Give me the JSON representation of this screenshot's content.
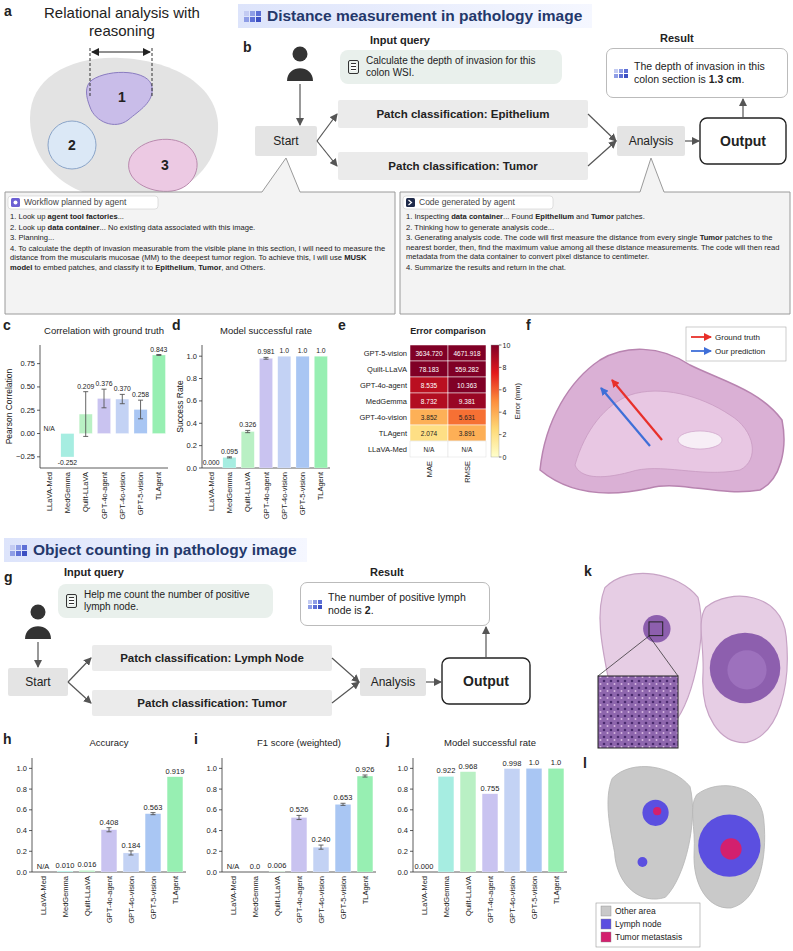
{
  "panel_a": {
    "letter": "a",
    "title": "Relational analysis with reasoning",
    "regions": [
      "1",
      "2",
      "3"
    ]
  },
  "section_1": {
    "title": "Distance measurement in pathology image"
  },
  "panel_b": {
    "letter": "b",
    "input_label": "Input query",
    "query": "Calculate the depth of invasion for this colon WSI.",
    "result_label": "Result",
    "result": [
      "The depth of invasion in this colon section is ",
      "1.3 cm",
      "."
    ],
    "flow": {
      "start": "Start",
      "branches": [
        "Patch classification: Epithelium",
        "Patch classification: Tumor"
      ],
      "analysis": "Analysis",
      "output": "Output"
    },
    "workflow": {
      "title": "Workflow planned by agent",
      "items": [
        [
          "1. Look up ",
          "agent tool factories",
          "..."
        ],
        [
          "2. Look up ",
          "data container",
          "... No existing data associated with this image."
        ],
        [
          "3. Planning..."
        ],
        [
          "4. To calculate the depth of invasion measurable from the visible plane in this section, I will need to measure the distance from the muscularis mucosae (MM) to the deepest tumor region. To achieve this, I will use ",
          "MUSK model",
          " to embed patches, and classify it to ",
          "Epithelium",
          ", ",
          "Tumor",
          ", and Others."
        ]
      ]
    },
    "code": {
      "title": "Code generated by agent",
      "items": [
        [
          "1. Inspecting ",
          "data container",
          "... Found ",
          "Epithelium",
          " and ",
          "Tumor",
          " patches."
        ],
        [
          "2. Thinking how to generate analysis code..."
        ],
        [
          "3. Generating analysis code. The code will first measure the distance from every single ",
          "Tumor",
          " patches to the nearest border, then, find the maximum value among all these distance measurements. The code will then read metadata from the data container to convert pixel distance to centimeter."
        ],
        [
          "4. Summarize the results and return in the chat."
        ]
      ]
    }
  },
  "chart_data": [
    {
      "type": "bar",
      "panel_label": "c",
      "title": "Correlation with ground truth",
      "y_label": "Pearson Correlation",
      "categories": [
        "LLaVA-Med",
        "MedGemma",
        "Quilt-LLaVA",
        "GPT-4o-agent",
        "GPT-4o-vision",
        "GPT-5-vision",
        "TLAgent"
      ],
      "values": [
        null,
        -0.252,
        0.209,
        0.376,
        0.37,
        0.258,
        0.843
      ],
      "errors": [
        null,
        null,
        0.24,
        0.1,
        0.05,
        0.1,
        0.005
      ],
      "value_labels": [
        "N/A",
        "-0.252",
        "0.209",
        "0.376",
        "0.370",
        "0.258",
        "0.843"
      ],
      "colors": [
        "#d6eef7",
        "#a6ede1",
        "#b9f0c4",
        "#c9c3f0",
        "#c3d2f4",
        "#a9c6f3",
        "#97efb2"
      ],
      "ylim": [
        -0.37,
        0.95
      ],
      "yticks": [
        {
          "value": -0.25,
          "label": "−0.25"
        },
        {
          "value": 0,
          "label": "0.00"
        },
        0.25,
        {
          "value": 0.5,
          "label": "0.50"
        },
        0.75
      ],
      "grid": false,
      "data_labels": true
    },
    {
      "type": "bar",
      "panel_label": "d",
      "title": "Model successful rate",
      "y_label": "Success Rate",
      "categories": [
        "LLaVA-Med",
        "MedGemma",
        "Quilt-LLaVA",
        "GPT-4o-agent",
        "GPT-4o-vision",
        "GPT-5-vision",
        "TLAgent"
      ],
      "values": [
        0,
        0.095,
        0.326,
        0.981,
        1,
        1,
        1
      ],
      "errors": [
        null,
        0.005,
        0.01,
        0.008,
        null,
        null,
        null
      ],
      "value_labels": [
        "0.000",
        "0.095",
        "0.326",
        "0.981",
        "1.0",
        "1.0",
        "1.0"
      ],
      "colors": [
        "#d6eef7",
        "#a6ede1",
        "#b9f0c4",
        "#c9c3f0",
        "#c3d2f4",
        "#a9c6f3",
        "#97efb2"
      ],
      "ylim": [
        0,
        1.1
      ],
      "yticks": [
        {
          "value": 0,
          "label": "0.0"
        },
        0.2,
        0.4,
        0.6,
        0.8,
        {
          "value": 1,
          "label": "1.0"
        }
      ],
      "grid": false,
      "data_labels": true
    },
    {
      "type": "heatmap",
      "panel_label": "e",
      "title": "Error comparison",
      "rows": [
        "GPT-5-vision",
        "Quilt-LLaVA",
        "GPT-4o-agent",
        "MedGemma",
        "GPT-4o-vision",
        "TLAgent",
        "LLaVA-Med"
      ],
      "columns": [
        "MAE",
        "RMSE"
      ],
      "cells": [
        [
          3634.72,
          4671.918
        ],
        [
          78.183,
          559.282
        ],
        [
          8.535,
          10.363
        ],
        [
          8.732,
          9.381
        ],
        [
          3.852,
          5.631
        ],
        [
          2.074,
          3.891
        ],
        [
          null,
          null
        ]
      ],
      "cell_labels": [
        [
          "3634.720",
          "4671.918"
        ],
        [
          "78.183",
          "559.282"
        ],
        [
          "8.535",
          "10.363"
        ],
        [
          "8.732",
          "9.381"
        ],
        [
          "3.852",
          "5.631"
        ],
        [
          "2.074",
          "3.891"
        ],
        [
          "N/A",
          "N/A"
        ]
      ],
      "colorbar": {
        "label": "Error (mm)",
        "range": [
          0,
          10
        ],
        "ticks": [
          0,
          2,
          4,
          6,
          8,
          10
        ]
      }
    },
    {
      "type": "bar",
      "panel_label": "h",
      "title": "Accuracy",
      "categories": [
        "LLaVA-Med",
        "MedGemma",
        "Quilt-LLaVA",
        "GPT-4o-agent",
        "GPT-4o-vision",
        "GPT-5-vision",
        "TLAgent"
      ],
      "values": [
        null,
        0.01,
        0.016,
        0.408,
        0.184,
        0.563,
        0.919
      ],
      "errors": [
        null,
        null,
        null,
        0.02,
        0.02,
        0.01,
        null
      ],
      "value_labels": [
        "N/A",
        "0.010",
        "0.016",
        "0.408",
        "0.184",
        "0.563",
        "0.919"
      ],
      "colors": [
        "#d6eef7",
        "#a6ede1",
        "#b9f0c4",
        "#c9c3f0",
        "#c3d2f4",
        "#a9c6f3",
        "#97efb2"
      ],
      "ylim": [
        0,
        1.1
      ],
      "yticks": [
        {
          "value": 0,
          "label": "0.0"
        },
        0.2,
        0.4,
        0.6,
        0.8,
        {
          "value": 1,
          "label": "1.0"
        }
      ],
      "grid": false,
      "data_labels": true
    },
    {
      "type": "bar",
      "panel_label": "i",
      "title": "F1 score (weighted)",
      "categories": [
        "LLaVA-Med",
        "MedGemma",
        "Quilt-LLaVA",
        "GPT-4o-agent",
        "GPT-4o-vision",
        "GPT-5-vision",
        "TLAgent"
      ],
      "values": [
        null,
        0,
        0.006,
        0.526,
        0.24,
        0.653,
        0.926
      ],
      "errors": [
        null,
        null,
        null,
        0.02,
        0.02,
        0.01,
        0.01
      ],
      "value_labels": [
        "N/A",
        "0.0",
        "0.006",
        "0.526",
        "0.240",
        "0.653",
        "0.926"
      ],
      "colors": [
        "#d6eef7",
        "#a6ede1",
        "#b9f0c4",
        "#c9c3f0",
        "#c3d2f4",
        "#a9c6f3",
        "#97efb2"
      ],
      "ylim": [
        0,
        1.1
      ],
      "yticks": [
        {
          "value": 0,
          "label": "0.0"
        },
        0.2,
        0.4,
        0.6,
        0.8,
        {
          "value": 1,
          "label": "1.0"
        }
      ],
      "grid": false,
      "data_labels": true
    },
    {
      "type": "bar",
      "panel_label": "j",
      "title": "Model successful rate",
      "categories": [
        "LLaVA-Med",
        "MedGemma",
        "Quilt-LLaVA",
        "GPT-4o-agent",
        "GPT-4o-vision",
        "GPT-5-vision",
        "TLAgent"
      ],
      "values": [
        0,
        0.922,
        0.968,
        0.755,
        0.998,
        1,
        1
      ],
      "value_labels": [
        "0.000",
        "0.922",
        "0.968",
        "0.755",
        "0.998",
        "1.0",
        "1.0"
      ],
      "colors": [
        "#d6eef7",
        "#a6ede1",
        "#b9f0c4",
        "#c9c3f0",
        "#c3d2f4",
        "#a9c6f3",
        "#97efb2"
      ],
      "ylim": [
        0,
        1.1
      ],
      "yticks": [
        {
          "value": 0,
          "label": "0.0"
        },
        0.2,
        0.4,
        0.6,
        0.8,
        {
          "value": 1,
          "label": "1.0"
        }
      ],
      "grid": false,
      "data_labels": true
    }
  ],
  "panel_f": {
    "letter": "f",
    "legend": [
      {
        "label": "Ground truth",
        "color": "#e8302a"
      },
      {
        "label": "Our prediction",
        "color": "#3f6fd8"
      }
    ]
  },
  "section_2": {
    "title": "Object counting in pathology image"
  },
  "panel_g": {
    "letter": "g",
    "input_label": "Input query",
    "query": "Help me count the number of positive lymph node.",
    "result_label": "Result",
    "result": [
      "The number of positive lymph node is ",
      "2",
      "."
    ],
    "flow": {
      "start": "Start",
      "branches": [
        "Patch classification: Lymph Node",
        "Patch classification: Tumor"
      ],
      "analysis": "Analysis",
      "output": "Output"
    }
  },
  "panel_k": {
    "letter": "k"
  },
  "panel_l": {
    "letter": "l",
    "legend": [
      {
        "label": "Other area",
        "color": "#c9c9c9"
      },
      {
        "label": "Lymph node",
        "color": "#5b4fe0"
      },
      {
        "label": "Tumor metastasis",
        "color": "#d3206e"
      }
    ]
  }
}
